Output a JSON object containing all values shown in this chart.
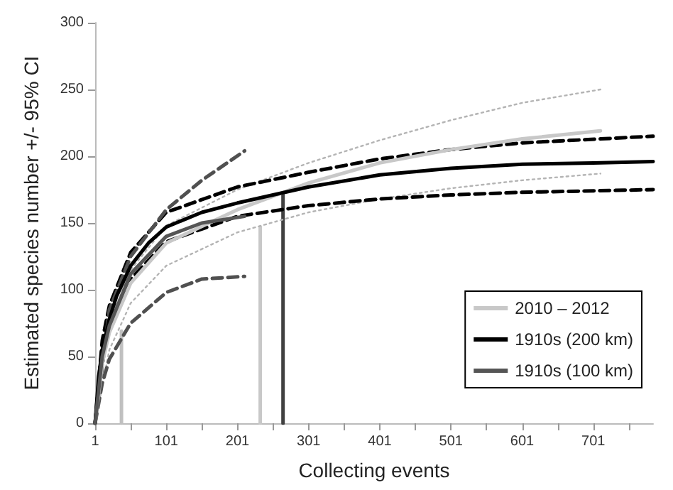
{
  "chart_data": {
    "type": "line",
    "xlabel": "Collecting events",
    "ylabel": "Estimated species number +/- 95% CI",
    "xlim": [
      1,
      785
    ],
    "ylim": [
      0,
      300
    ],
    "xticks": [
      1,
      {
        "value": 51,
        "label": null
      },
      101,
      {
        "value": 151,
        "label": null
      },
      201,
      {
        "value": 251,
        "label": null
      },
      301,
      {
        "value": 351,
        "label": null
      },
      401,
      {
        "value": 451,
        "label": null
      },
      501,
      {
        "value": 551,
        "label": null
      },
      601,
      {
        "value": 651,
        "label": null
      },
      701,
      {
        "value": 751,
        "label": null
      }
    ],
    "yticks": [
      0,
      50,
      100,
      150,
      200,
      250,
      300
    ],
    "grid": false,
    "legend": "bottom right",
    "marker": "none",
    "series": [
      {
        "color": "#c0c0c0",
        "line_style": "solid",
        "x": [
          38,
          38
        ],
        "values": [
          0,
          69
        ]
      },
      {
        "color": "#c8c8c8",
        "line_style": "solid",
        "x": [
          233,
          233
        ],
        "values": [
          0,
          147
        ]
      },
      {
        "color": "#404040",
        "line_style": "solid",
        "x": [
          265,
          265
        ],
        "values": [
          0,
          171
        ]
      },
      {
        "color": "#b4b4b4",
        "line_style": "dotted",
        "x": [
          1,
          21,
          51,
          101,
          201,
          301,
          401,
          501,
          601,
          711
        ],
        "values": [
          0,
          75,
          115,
          148,
          175,
          195,
          212,
          227,
          240,
          250
        ]
      },
      {
        "color": "#b4b4b4",
        "line_style": "dotted",
        "x": [
          1,
          21,
          51,
          101,
          201,
          301,
          401,
          501,
          601,
          711
        ],
        "values": [
          0,
          55,
          90,
          118,
          143,
          158,
          168,
          176,
          182,
          187
        ]
      },
      {
        "name": "2010 – 2012",
        "color": "#c8c8c8",
        "line_style": "solid",
        "x": [
          1,
          11,
          21,
          51,
          101,
          201,
          251,
          301,
          401,
          501,
          601,
          711
        ],
        "values": [
          0,
          45,
          68,
          105,
          135,
          160,
          170,
          180,
          195,
          205,
          213,
          219
        ]
      },
      {
        "color": "#000000",
        "line_style": "dashed",
        "x": [
          1,
          11,
          21,
          51,
          101,
          201,
          301,
          401,
          501,
          601,
          785
        ],
        "values": [
          0,
          62,
          88,
          128,
          158,
          177,
          188,
          198,
          205,
          210,
          215
        ]
      },
      {
        "color": "#000000",
        "line_style": "dashed",
        "x": [
          1,
          11,
          21,
          51,
          101,
          201,
          301,
          401,
          501,
          601,
          785
        ],
        "values": [
          0,
          48,
          70,
          108,
          136,
          155,
          163,
          168,
          171,
          173,
          175
        ]
      },
      {
        "name": "1910s (200 km)",
        "color": "#000000",
        "line_style": "solid",
        "x": [
          1,
          6,
          11,
          21,
          31,
          51,
          76,
          101,
          151,
          201,
          251,
          301,
          401,
          501,
          601,
          701,
          785
        ],
        "values": [
          0,
          35,
          55,
          78,
          95,
          118,
          135,
          147,
          158,
          165,
          171,
          177,
          186,
          191,
          194,
          195,
          196
        ]
      },
      {
        "color": "#505050",
        "line_style": "dashed",
        "x": [
          1,
          21,
          51,
          101,
          151,
          211
        ],
        "values": [
          0,
          85,
          125,
          160,
          182,
          204
        ]
      },
      {
        "color": "#505050",
        "line_style": "dashed",
        "x": [
          1,
          11,
          21,
          51,
          101,
          151,
          211
        ],
        "values": [
          0,
          30,
          48,
          75,
          98,
          108,
          110
        ]
      },
      {
        "name": "1910s (100 km)",
        "color": "#555555",
        "line_style": "solid",
        "x": [
          1,
          11,
          21,
          51,
          101,
          151,
          211
        ],
        "values": [
          0,
          50,
          73,
          112,
          140,
          150,
          155
        ]
      }
    ]
  }
}
